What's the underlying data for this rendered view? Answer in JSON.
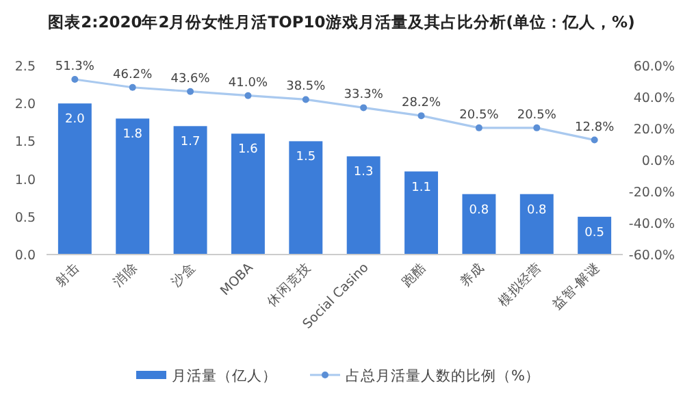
{
  "chart_data": {
    "type": "bar",
    "title": "图表2:2020年2月份女性月活TOP10游戏月活量及其占比分析(单位：亿人，%)",
    "categories": [
      "射击",
      "消除",
      "沙盒",
      "MOBA",
      "休闲竞技",
      "Social Casino",
      "跑酷",
      "养成",
      "模拟经营",
      "益智-解谜"
    ],
    "series": [
      {
        "name": "月活量（亿人）",
        "color": "#3c7dd9",
        "values": [
          2.0,
          1.8,
          1.7,
          1.6,
          1.5,
          1.3,
          1.1,
          0.8,
          0.8,
          0.5
        ],
        "value_labels": [
          "2.0",
          "1.8",
          "1.7",
          "1.6",
          "1.5",
          "1.3",
          "1.1",
          "0.8",
          "0.8",
          "0.5"
        ]
      },
      {
        "name": "占总月活量人数的比例（%）",
        "type": "line",
        "axis": "y2",
        "color": "#a9c9ef",
        "marker": "circle",
        "values": [
          51.3,
          46.2,
          43.6,
          41.0,
          38.5,
          33.3,
          28.2,
          20.5,
          20.5,
          12.8
        ],
        "value_labels": [
          "51.3%",
          "46.2%",
          "43.6%",
          "41.0%",
          "38.5%",
          "33.3%",
          "28.2%",
          "20.5%",
          "20.5%",
          "12.8%"
        ]
      }
    ],
    "ylim": [
      0,
      2.5
    ],
    "yticks": [
      {
        "value": 0,
        "label": "0.0"
      },
      {
        "value": 0.5,
        "label": "0.5"
      },
      {
        "value": 1,
        "label": "1.0"
      },
      {
        "value": 1.5,
        "label": "1.5"
      },
      {
        "value": 2,
        "label": "2.0"
      },
      {
        "value": 2.5,
        "label": "2.5"
      }
    ],
    "y2lim": [
      -60,
      60
    ],
    "y2ticks": [
      {
        "value": -60,
        "label": "-60.0%"
      },
      {
        "value": -40,
        "label": "-40.0%"
      },
      {
        "value": -20,
        "label": "-20.0%"
      },
      {
        "value": 0,
        "label": "0.0%"
      },
      {
        "value": 20,
        "label": "20.0%"
      },
      {
        "value": 40,
        "label": "40.0%"
      },
      {
        "value": 60,
        "label": "60.0%"
      }
    ],
    "grid": false,
    "legend": "bottom"
  }
}
